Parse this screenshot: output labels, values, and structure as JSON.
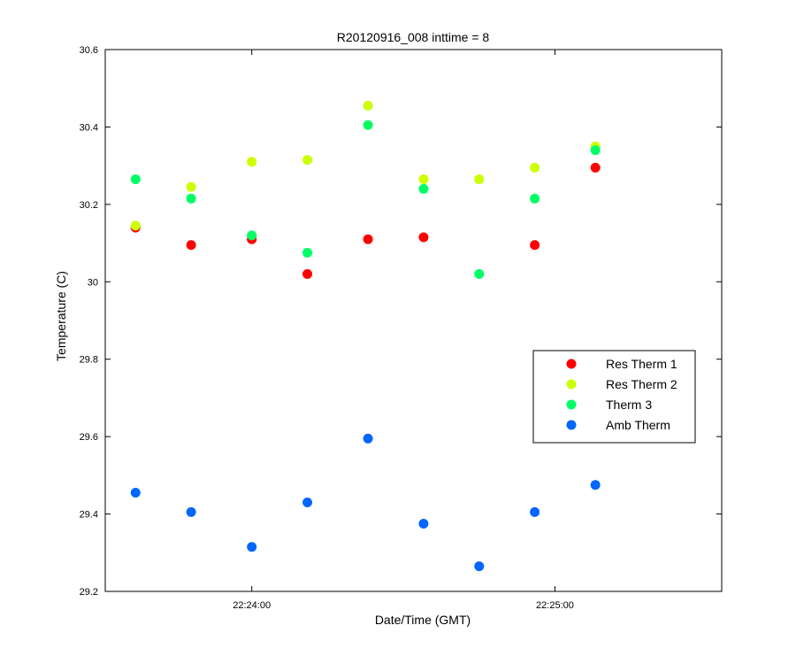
{
  "chart_data": {
    "type": "scatter",
    "title": "R20120916_008 inttime = 8",
    "xlabel": "Date/Time (GMT)",
    "ylabel": "Temperature (C)",
    "xlim": [
      "22:23:31",
      "22:25:33"
    ],
    "ylim": [
      29.2,
      30.6
    ],
    "x_ticks": [
      {
        "value": "22:24:00",
        "label": "22:24:00"
      },
      {
        "value": "22:25:00",
        "label": "22:25:00"
      }
    ],
    "y_ticks": [
      {
        "value": 29.2,
        "label": "29.2"
      },
      {
        "value": 29.4,
        "label": "29.4"
      },
      {
        "value": 29.6,
        "label": "29.6"
      },
      {
        "value": 29.8,
        "label": "29.8"
      },
      {
        "value": 30.0,
        "label": "30"
      },
      {
        "value": 30.2,
        "label": "30.2"
      },
      {
        "value": 30.4,
        "label": "30.4"
      },
      {
        "value": 30.6,
        "label": "30.6"
      }
    ],
    "x": [
      "22:23:37",
      "22:23:48",
      "22:24:00",
      "22:24:11",
      "22:24:23",
      "22:24:34",
      "22:24:45",
      "22:24:56",
      "22:25:08"
    ],
    "series": [
      {
        "name": "Res Therm 1",
        "color": "#ff0000",
        "values": [
          30.14,
          30.095,
          30.11,
          30.02,
          30.11,
          30.115,
          null,
          30.095,
          30.295
        ]
      },
      {
        "name": "Res Therm 2",
        "color": "#ccff00",
        "values": [
          30.145,
          30.245,
          30.31,
          30.315,
          30.455,
          30.265,
          30.265,
          30.295,
          30.35
        ]
      },
      {
        "name": "Therm 3",
        "color": "#00ff66",
        "values": [
          30.265,
          30.215,
          30.12,
          30.075,
          30.405,
          30.24,
          30.02,
          30.215,
          30.34
        ]
      },
      {
        "name": "Amb Therm",
        "color": "#0066ff",
        "values": [
          29.455,
          29.405,
          29.315,
          29.43,
          29.595,
          29.375,
          29.265,
          29.405,
          29.475
        ]
      }
    ],
    "grid": false,
    "legend_position": "right"
  }
}
